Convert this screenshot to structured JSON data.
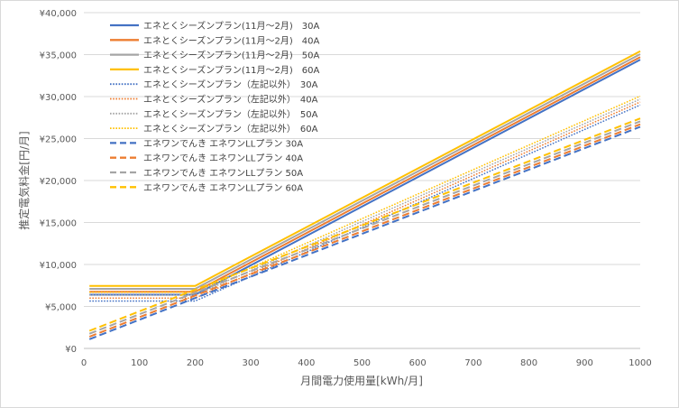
{
  "chart_data": {
    "type": "line",
    "title": "",
    "xlabel": "月間電力使用量[kWh/月]",
    "ylabel": "推定電気料金[円/月]",
    "xlim": [
      0,
      1000
    ],
    "ylim": [
      0,
      40000
    ],
    "x_ticks": [
      "0",
      "100",
      "200",
      "300",
      "400",
      "500",
      "600",
      "700",
      "800",
      "900",
      "1000"
    ],
    "y_ticks": [
      "¥0",
      "¥5,000",
      "¥10,000",
      "¥15,000",
      "¥20,000",
      "¥25,000",
      "¥30,000",
      "¥35,000",
      "¥40,000"
    ],
    "grid": "horizontal",
    "legend_position": "top-left",
    "x": [
      10,
      200,
      1000
    ],
    "series": [
      {
        "name": "エネとくシーズンプラン(11月～2月)　30A",
        "color": "#4472c4",
        "style": "solid",
        "values": [
          6400,
          6400,
          34400
        ]
      },
      {
        "name": "エネとくシーズンプラン(11月～2月)　40A",
        "color": "#ed7d31",
        "style": "solid",
        "values": [
          6750,
          6750,
          34700
        ]
      },
      {
        "name": "エネとくシーズンプラン(11月～2月)　50A",
        "color": "#a5a5a5",
        "style": "solid",
        "values": [
          7100,
          7100,
          35050
        ]
      },
      {
        "name": "エネとくシーズンプラン(11月～2月)　60A",
        "color": "#ffc000",
        "style": "solid",
        "values": [
          7450,
          7450,
          35400
        ]
      },
      {
        "name": "エネとくシーズンプラン（左記以外）　30A",
        "color": "#4472c4",
        "style": "dotted",
        "values": [
          5650,
          5650,
          29000
        ]
      },
      {
        "name": "エネとくシーズンプラン（左記以外）　40A",
        "color": "#ed7d31",
        "style": "dotted",
        "values": [
          6000,
          6000,
          29350
        ]
      },
      {
        "name": "エネとくシーズンプラン（左記以外）　50A",
        "color": "#a5a5a5",
        "style": "dotted",
        "values": [
          6350,
          6350,
          29700
        ]
      },
      {
        "name": "エネとくシーズンプラン（左記以外）　60A",
        "color": "#ffc000",
        "style": "dotted",
        "values": [
          6700,
          6700,
          30050
        ]
      },
      {
        "name": "エネワンでんき エネワンLLプラン 30A",
        "color": "#4472c4",
        "style": "dashed",
        "values": [
          1100,
          6000,
          26400
        ]
      },
      {
        "name": "エネワンでんき エネワンLLプラン 40A",
        "color": "#ed7d31",
        "style": "dashed",
        "values": [
          1400,
          6300,
          26700
        ]
      },
      {
        "name": "エネワンでんき エネワンLLプラン 50A",
        "color": "#a5a5a5",
        "style": "dashed",
        "values": [
          1750,
          6650,
          27050
        ]
      },
      {
        "name": "エネワンでんき エネワンLLプラン 60A",
        "color": "#ffc000",
        "style": "dashed",
        "values": [
          2100,
          7000,
          27400
        ]
      }
    ]
  }
}
